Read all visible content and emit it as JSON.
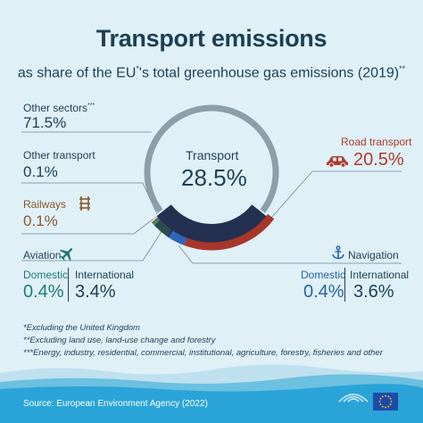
{
  "header": {
    "title": "Transport emissions",
    "subtitle_pre": "as share of the EU",
    "subtitle_sup1": "*",
    "subtitle_post": "'s total greenhouse gas emissions (2019)",
    "subtitle_sup2": "**"
  },
  "chart_data": {
    "type": "pie",
    "title": "Transport emissions",
    "center_label": "Transport",
    "center_value": "28.5%",
    "outer_ring": [
      {
        "name": "Transport",
        "value": 28.5
      },
      {
        "name": "Other sectors",
        "value": 71.5
      }
    ],
    "inner_ring": [
      {
        "name": "Other transport",
        "value": 0.1
      },
      {
        "name": "Railways",
        "value": 0.1
      },
      {
        "name": "Aviation Domestic",
        "value": 0.4
      },
      {
        "name": "Aviation International",
        "value": 3.4
      },
      {
        "name": "Navigation Domestic",
        "value": 0.4
      },
      {
        "name": "Navigation International",
        "value": 3.6
      },
      {
        "name": "Road transport",
        "value": 20.5
      }
    ],
    "colors": {
      "other_sectors": "#8a9fa8",
      "transport_outer": "#23304f",
      "road": "#a6372b",
      "navigation_intl": "#2d66b6",
      "navigation_dom": "#1b2f73",
      "aviation_intl": "#2a4d4f",
      "aviation_dom": "#2c8e70",
      "railways": "#8b5a2b",
      "other_transport": "#c9d6dc"
    }
  },
  "labels": {
    "other_sectors": {
      "label": "Other sectors",
      "sup": "***",
      "value": "71.5%"
    },
    "other_transport": {
      "label": "Other transport",
      "value": "0.1%"
    },
    "railways": {
      "label": "Railways",
      "value": "0.1%"
    },
    "road": {
      "label": "Road transport",
      "value": "20.5%"
    },
    "aviation": {
      "label": "Aviation",
      "domestic_label": "Domestic",
      "domestic_value": "0.4%",
      "international_label": "International",
      "international_value": "3.4%"
    },
    "navigation": {
      "label": "Navigation",
      "domestic_label": "Domestic",
      "domestic_value": "0.4%",
      "international_label": "International",
      "international_value": "3.6%"
    }
  },
  "footnotes": [
    "*Excluding the United Kingdom",
    "**Excluding land use, land-use change and forestry",
    "***Energy, industry, residential, commercial, institutional, agriculture, forestry, fisheries and other"
  ],
  "source": "Source: European Environment Agency (2022)"
}
